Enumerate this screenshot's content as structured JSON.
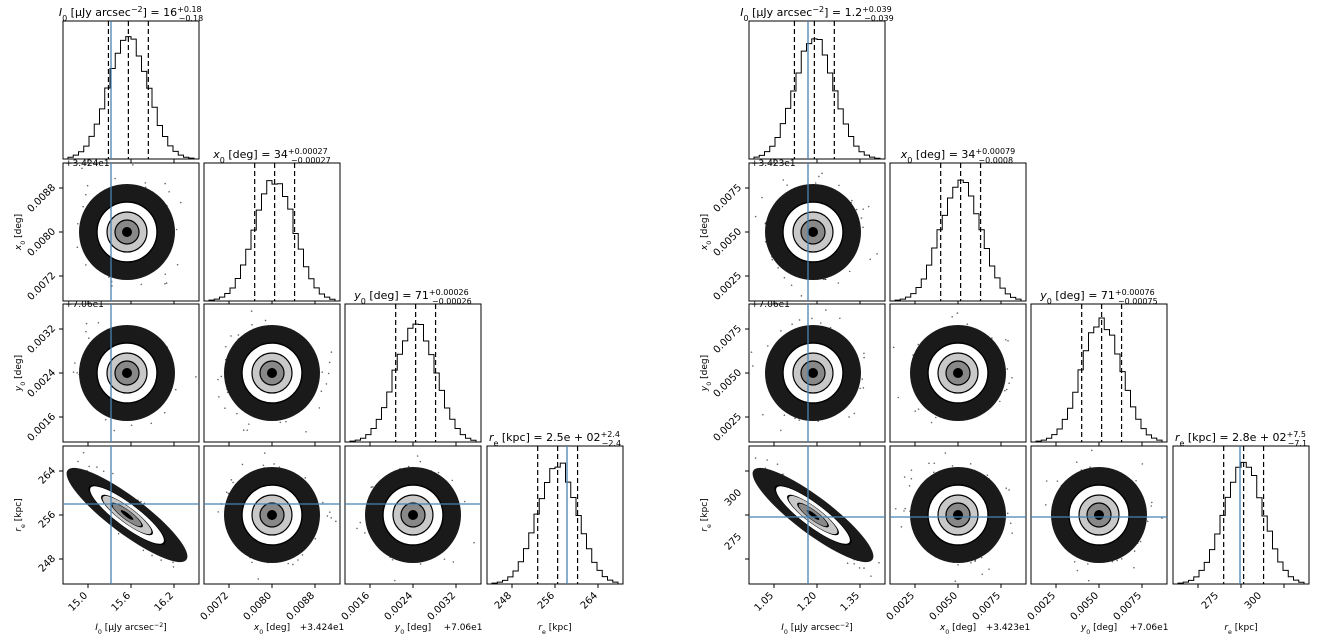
{
  "figure": {
    "panels": [
      {
        "id": "left",
        "truth": {
          "I0": 15.3,
          "re": 256.6
        },
        "titles": [
          {
            "var": "I0",
            "base": "I",
            "sub": "0",
            "unit": " [μJy arcsec",
            "unit_sup": "−2",
            "unit_end": "] = 16",
            "plus": "+0.18",
            "minus": "−0.18"
          },
          {
            "var": "x0",
            "base": "x",
            "sub": "0",
            "unit": " [deg] = 34",
            "plus": "+0.00027",
            "minus": "−0.00027"
          },
          {
            "var": "y0",
            "base": "y",
            "sub": "0",
            "unit": " [deg] = 71",
            "plus": "+0.00026",
            "minus": "−0.00026"
          },
          {
            "var": "re",
            "base": "r",
            "sub": "e",
            "unit": " [kpc] = 2.5e + 02",
            "plus": "+2.4",
            "minus": "−2.4"
          }
        ],
        "xlabels": [
          {
            "base": "I",
            "sub": "0",
            "text": " [μJy arcsec",
            "sup": "−2",
            "end": "]"
          },
          {
            "base": "x",
            "sub": "0",
            "text": " [deg]",
            "offset": "+3.424e1"
          },
          {
            "base": "y",
            "sub": "0",
            "text": " [deg]",
            "offset": "+7.06e1"
          },
          {
            "base": "r",
            "sub": "e",
            "text": " [kpc]"
          }
        ],
        "ylabels": [
          {
            "base": "x",
            "sub": "0",
            "text": " [deg]"
          },
          {
            "base": "y",
            "sub": "0",
            "text": " [deg]"
          },
          {
            "base": "r",
            "sub": "e",
            "text": " [kpc]"
          }
        ],
        "offsets_left": [
          "+3.424e1",
          "+7.06e1"
        ],
        "xticks": [
          [
            "15.0",
            "15.6",
            "16.2"
          ],
          [
            "0.0072",
            "0.0080",
            "0.0088"
          ],
          [
            "0.0016",
            "0.0024",
            "0.0032"
          ],
          [
            "248",
            "256",
            "264"
          ]
        ],
        "yticks": [
          [
            "0.0088",
            "0.0080",
            "0.0072"
          ],
          [
            "0.0032",
            "0.0024",
            "0.0016"
          ],
          [
            "264",
            "256",
            "248"
          ]
        ]
      },
      {
        "id": "right",
        "truth": {
          "I0": 1.2,
          "re": 280
        },
        "titles": [
          {
            "var": "I0",
            "base": "I",
            "sub": "0",
            "unit": " [μJy arcsec",
            "unit_sup": "−2",
            "unit_end": "] = 1.2",
            "plus": "+0.039",
            "minus": "−0.039"
          },
          {
            "var": "x0",
            "base": "x",
            "sub": "0",
            "unit": " [deg] = 34",
            "plus": "+0.00079",
            "minus": "−0.0008"
          },
          {
            "var": "y0",
            "base": "y",
            "sub": "0",
            "unit": " [deg] = 71",
            "plus": "+0.00076",
            "minus": "−0.00075"
          },
          {
            "var": "re",
            "base": "r",
            "sub": "e",
            "unit": " [kpc] = 2.8e + 02",
            "plus": "+7.5",
            "minus": "−7.1"
          }
        ],
        "xlabels": [
          {
            "base": "I",
            "sub": "0",
            "text": " [μJy arcsec",
            "sup": "−2",
            "end": "]"
          },
          {
            "base": "x",
            "sub": "0",
            "text": " [deg]",
            "offset": "+3.423e1"
          },
          {
            "base": "y",
            "sub": "0",
            "text": " [deg]",
            "offset": "+7.06e1"
          },
          {
            "base": "r",
            "sub": "e",
            "text": " [kpc]"
          }
        ],
        "ylabels": [
          {
            "base": "x",
            "sub": "0",
            "text": " [deg]"
          },
          {
            "base": "y",
            "sub": "0",
            "text": " [deg]"
          },
          {
            "base": "r",
            "sub": "e",
            "text": " [kpc]"
          }
        ],
        "offsets_left": [
          "+3.423e1",
          "+7.06e1"
        ],
        "xticks": [
          [
            "1.05",
            "1.20",
            "1.35"
          ],
          [
            "0.0025",
            "0.0050",
            "0.0075"
          ],
          [
            "0.0025",
            "0.0050",
            "0.0075"
          ],
          [
            "275",
            "300"
          ]
        ],
        "yticks": [
          [
            "0.0075",
            "0.0050",
            "0.0025"
          ],
          [
            "0.0075",
            "0.0050",
            "0.0025"
          ],
          [
            "300",
            "275"
          ]
        ]
      }
    ]
  },
  "chart_data": [
    {
      "type": "corner",
      "parameters": [
        "I0",
        "x0",
        "y0",
        "re"
      ],
      "medians": {
        "I0": 15.55,
        "x0": 34.248,
        "y0": 70.6024,
        "re": 254.0
      },
      "quantile_errors": {
        "I0": [
          0.18,
          0.18
        ],
        "x0": [
          0.00027,
          0.00027
        ],
        "y0": [
          0.00026,
          0.00026
        ],
        "re": [
          2.4,
          2.4
        ]
      },
      "truth": {
        "I0": 15.3,
        "re": 256.6
      },
      "ranges": {
        "I0": [
          14.6,
          16.5
        ],
        "x0": [
          0.0068,
          0.0092
        ],
        "y0": [
          0.0012,
          0.0036
        ],
        "re": [
          244,
          266
        ]
      },
      "correlations": {
        "I0-re": -0.9
      }
    },
    {
      "type": "corner",
      "parameters": [
        "I0",
        "x0",
        "y0",
        "re"
      ],
      "medians": {
        "I0": 1.19,
        "x0": 34.2342,
        "y0": 70.6055,
        "re": 279.0
      },
      "quantile_errors": {
        "I0": [
          0.039,
          0.039
        ],
        "x0": [
          0.0008,
          0.00079
        ],
        "y0": [
          0.00075,
          0.00076
        ],
        "re": [
          7.1,
          7.5
        ]
      },
      "truth": {
        "I0": 1.2,
        "re": 280
      },
      "ranges": {
        "I0": [
          1.0,
          1.4
        ],
        "x0": [
          0.0,
          0.009
        ],
        "y0": [
          0.0025,
          0.009
        ],
        "re": [
          255,
          310
        ]
      },
      "correlations": {
        "I0-re": -0.9
      }
    }
  ]
}
